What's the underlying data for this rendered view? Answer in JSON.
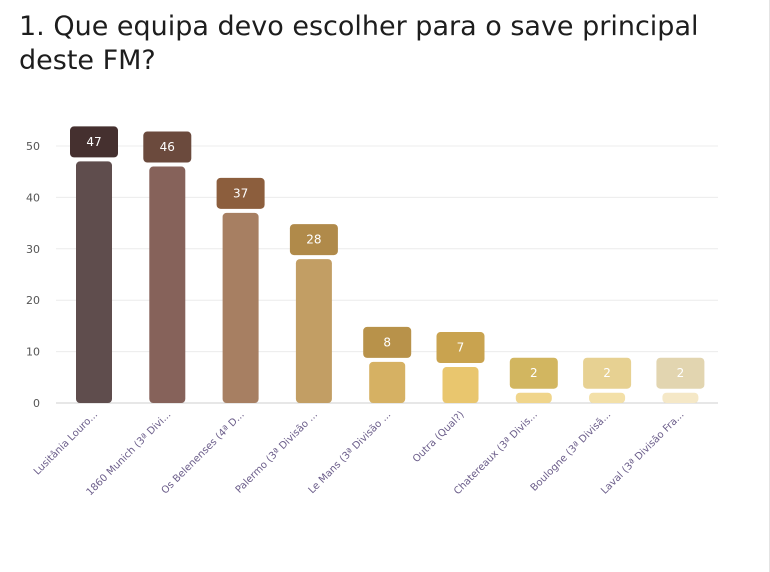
{
  "question": {
    "title": "1. Que equipa devo escolher para o save principal deste FM?"
  },
  "chart_data": {
    "type": "bar",
    "title": "",
    "xlabel": "",
    "ylabel": "",
    "ylim": [
      0,
      50
    ],
    "yticks": [
      0,
      10,
      20,
      30,
      40,
      50
    ],
    "grid": true,
    "categories": [
      "Lusitânia Louro...",
      "1860 Munich (3ª Divi...",
      "Os Belenenses (4ª D...",
      "Palermo (3ª Divisão ...",
      "Le Mans (3ª Divisão ...",
      "Outra (Qual?)",
      "Chatereaux (3ª Divis...",
      "Boulogne (3ª Divisã...",
      "Laval (3ª Divisão Fra..."
    ],
    "values": [
      47,
      46,
      37,
      28,
      8,
      7,
      2,
      2,
      2
    ],
    "bar_colors": [
      "#5f4d4d",
      "#86625a",
      "#a77f62",
      "#c29e64",
      "#d6b163",
      "#e9c66e",
      "#f0d58b",
      "#f3e0a8",
      "#f5e8c7"
    ],
    "label_colors": [
      "#45302f",
      "#6b4a3d",
      "#8c5e3d",
      "#b08a4a",
      "#b8924a",
      "#c9a34f",
      "#d2b660",
      "#e7d192",
      "#e2d5b0"
    ]
  }
}
